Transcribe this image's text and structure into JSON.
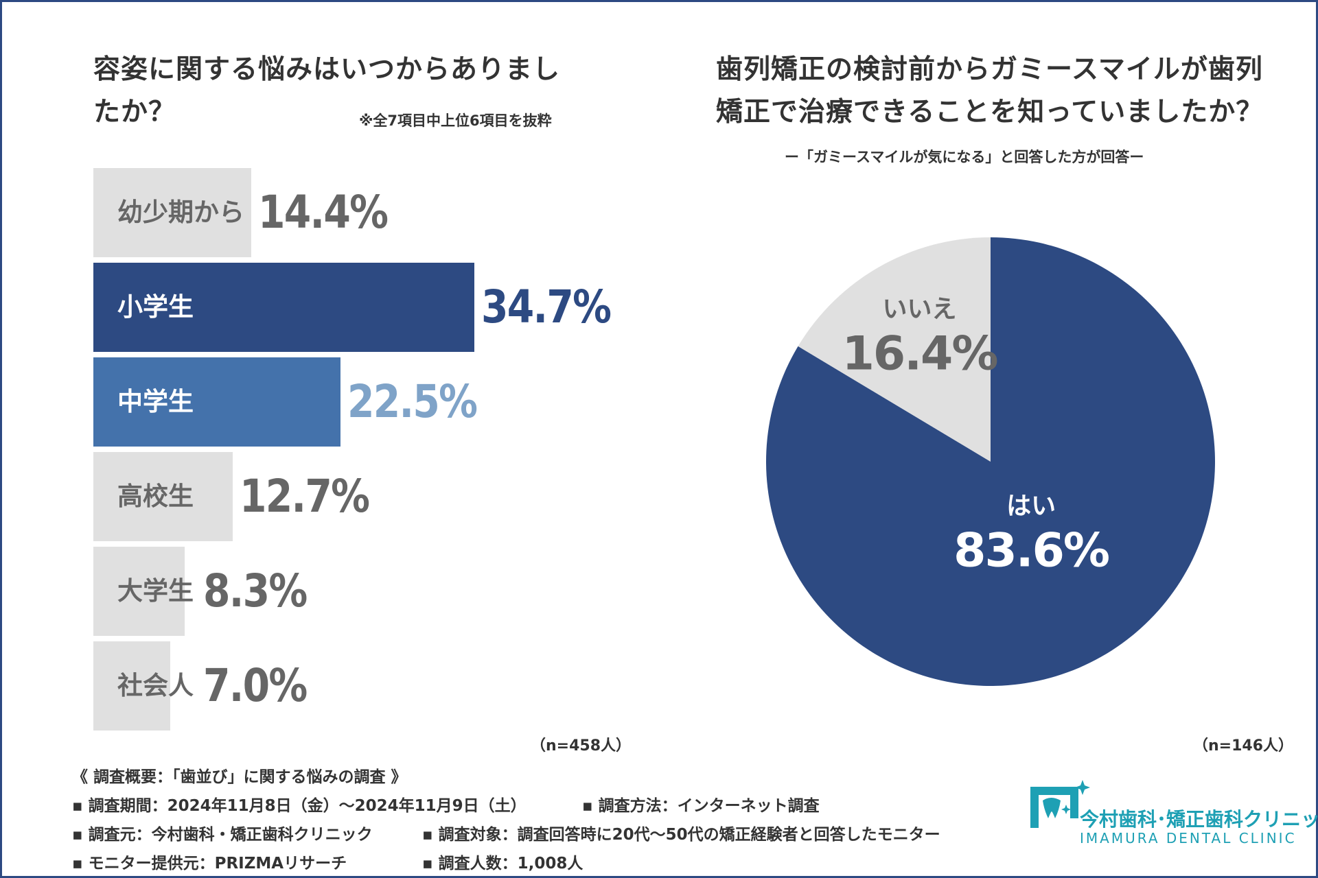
{
  "colors": {
    "frame": "#2d4a82",
    "bar_dark": "#2d4a82",
    "bar_mid": "#4472ab",
    "bar_gray": "#e0e0e0",
    "value_light": "#7fa3c8",
    "text": "#333333",
    "text_gray": "#666666",
    "white": "#ffffff",
    "pie_yes": "#2d4a82",
    "pie_no": "#e0e0e0",
    "logo": "#1ea0b4"
  },
  "chart_data": [
    {
      "type": "bar",
      "orientation": "horizontal",
      "title_lines": [
        "容姿に関する悩みはいつからありまし",
        "たか？"
      ],
      "note": "※全7項目中上位6項目を抜粋",
      "n_label": "（n=458人）",
      "categories": [
        "幼少期から",
        "小学生",
        "中学生",
        "高校生",
        "大学生",
        "社会人"
      ],
      "values": [
        14.4,
        34.7,
        22.5,
        12.7,
        8.3,
        7.0
      ],
      "value_labels": [
        "14.4%",
        "34.7%",
        "22.5%",
        "12.7%",
        "8.3%",
        "7.0%"
      ],
      "styles": [
        "gray",
        "dark",
        "mid",
        "gray",
        "gray",
        "gray"
      ],
      "xlim": [
        0,
        34.7
      ]
    },
    {
      "type": "pie",
      "title_lines": [
        "歯列矯正の検討前からガミースマイルが歯列",
        "矯正で治療できることを知っていましたか？"
      ],
      "subtitle": "ー「ガミースマイルが気になる」と回答した方が回答ー",
      "n_label": "（n=146人）",
      "slices": [
        {
          "label": "はい",
          "value": 83.6,
          "value_label": "83.6%"
        },
        {
          "label": "いいえ",
          "value": 16.4,
          "value_label": "16.4%"
        }
      ]
    }
  ],
  "footer": {
    "heading": "《 調査概要：「歯並び」に関する悩みの調査 》",
    "period": "▪ 調査期間：2024年11月8日（金）〜2024年11月9日（土）",
    "method": "▪ 調査方法：インターネット調査",
    "source": "▪ 調査元：今村歯科・矯正歯科クリニック",
    "target": "▪ 調査対象：調査回答時に20代〜50代の矯正経験者と回答したモニター",
    "provider": "▪ モニター提供元：PRIZMAリサーチ",
    "count": "▪ 調査人数：1,008人"
  },
  "logo": {
    "icon": "tooth-logo-icon",
    "name_jp": "今村歯科･矯正歯科クリニック",
    "name_en": "IMAMURA DENTAL CLINIC"
  }
}
